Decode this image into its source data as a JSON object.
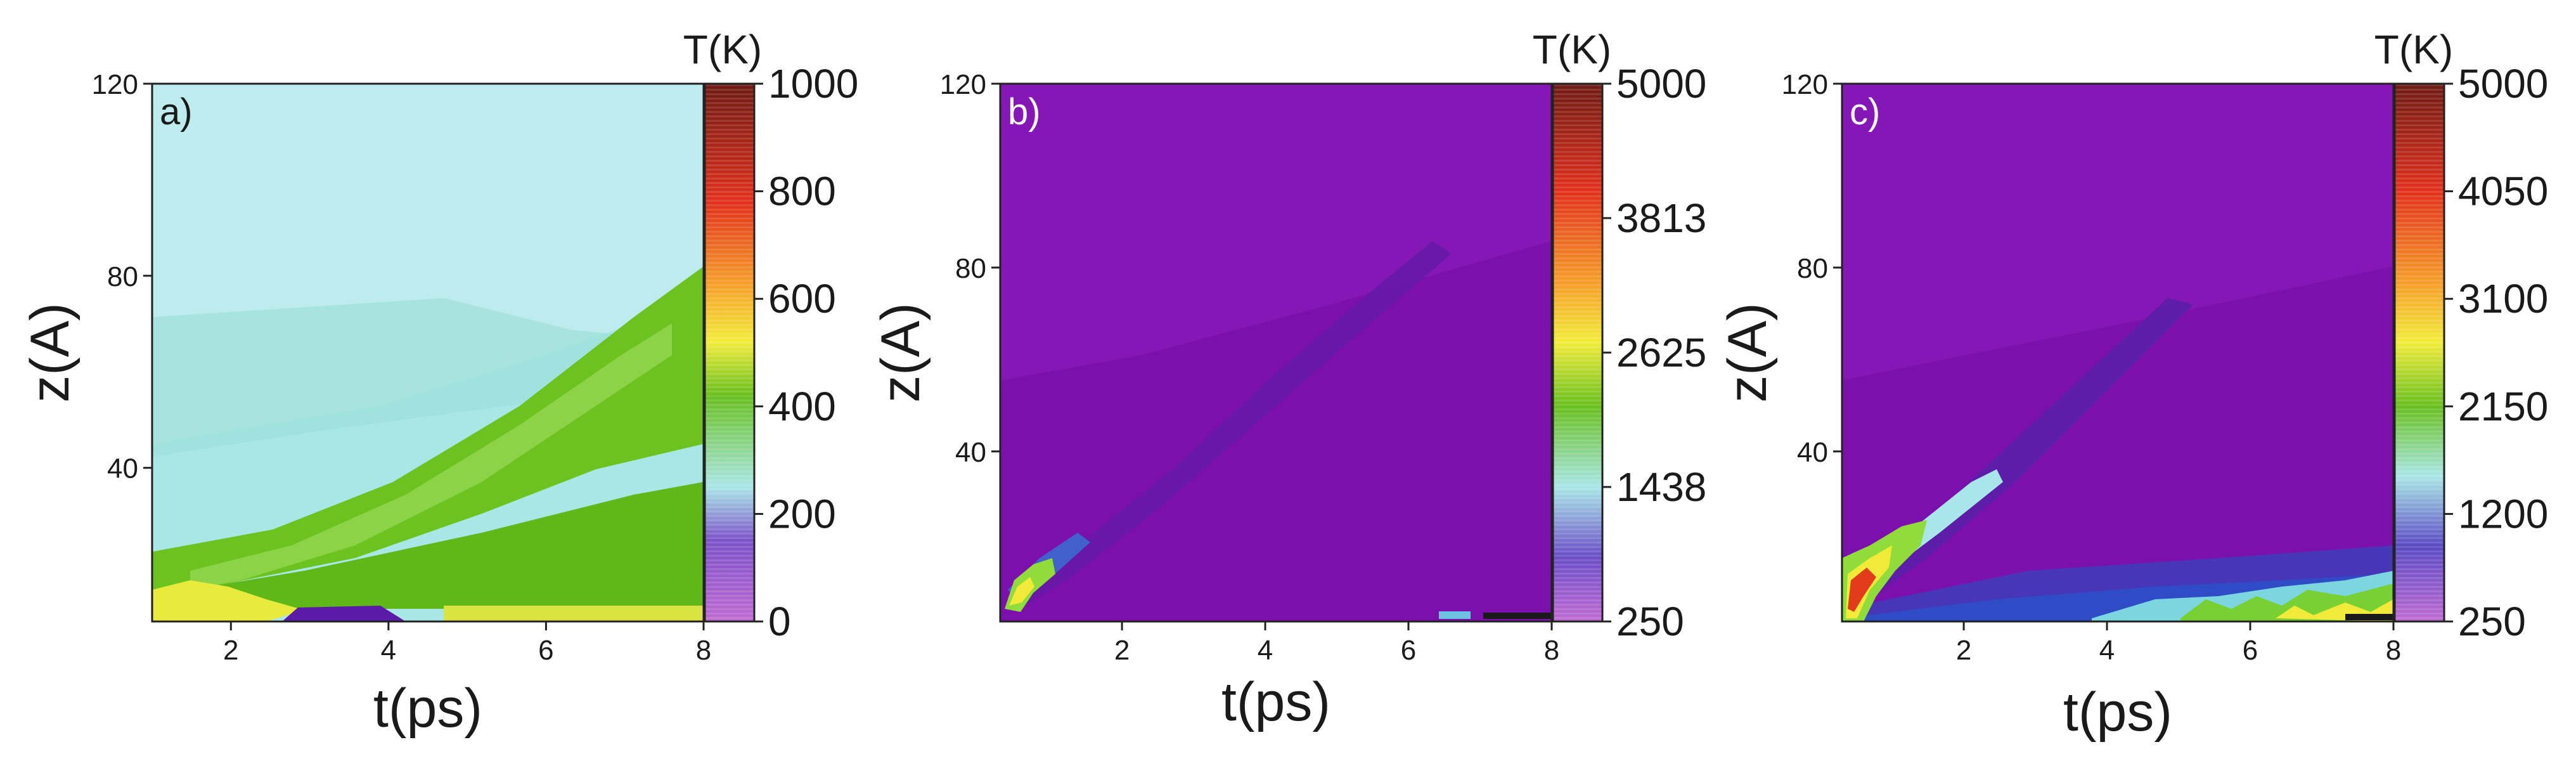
{
  "figure": {
    "colors": {
      "purple": "#7a12ad",
      "violet": "#8f1cbd",
      "blue": "#3e55c6",
      "cyan": "#a9e6e6",
      "light_blue": "#c3ecef",
      "green": "#69bf1c",
      "light_green": "#9bdc55",
      "yellow": "#f2ec3a",
      "orange": "#f07a1c",
      "red": "#e2301c",
      "dark_red": "#6e1b14"
    }
  },
  "chart_data": [
    {
      "type": "heatmap",
      "panel_label": "a)",
      "xlabel": "t(ps)",
      "ylabel": "z(A)",
      "xlim": [
        1,
        8
      ],
      "ylim": [
        8,
        120
      ],
      "xticks": [
        2,
        4,
        6,
        8
      ],
      "yticks": [
        40,
        80,
        120
      ],
      "xtick_labels": [
        "2",
        "4",
        "6",
        "8"
      ],
      "ytick_labels": [
        "40",
        "80",
        "120"
      ],
      "colorbar": {
        "title": "T(K)",
        "range": [
          0,
          1000
        ],
        "ticks": [
          0,
          200,
          400,
          600,
          800,
          1000
        ],
        "tick_labels": [
          "0",
          "200",
          "400",
          "600",
          "800",
          "1000"
        ]
      },
      "background_temperature": 250,
      "features": [
        {
          "kind": "band",
          "t": [
            1,
            8
          ],
          "z_low_start": 14,
          "z_high_start": 25,
          "z_low_end": 42,
          "z_high_end": 82,
          "temperature": 380
        },
        {
          "kind": "band",
          "t": [
            1,
            8
          ],
          "z_low_start": 8,
          "z_high_start": 14,
          "z_low_end": 8,
          "z_high_end": 12,
          "temperature": 430
        },
        {
          "kind": "spot",
          "t": [
            3,
            4.3
          ],
          "z": [
            8,
            10
          ],
          "temperature": 20
        }
      ]
    },
    {
      "type": "heatmap",
      "panel_label": "b)",
      "xlabel": "t(ps)",
      "ylabel": "z(A)",
      "xlim": [
        0.3,
        8
      ],
      "ylim": [
        3,
        120
      ],
      "xticks": [
        2,
        4,
        6,
        8
      ],
      "yticks": [
        40,
        80,
        120
      ],
      "xtick_labels": [
        "2",
        "4",
        "6",
        "8"
      ],
      "ytick_labels": [
        "40",
        "80",
        "120"
      ],
      "colorbar": {
        "title": "T(K)",
        "range": [
          250,
          5000
        ],
        "ticks": [
          250,
          1438,
          2625,
          3813,
          5000
        ],
        "tick_labels": [
          "250",
          "1438",
          "2625",
          "3813",
          "5000"
        ]
      },
      "background_temperature": 300,
      "features": [
        {
          "kind": "band",
          "t": [
            0.3,
            4.8
          ],
          "z_low_start": 5,
          "z_high_start": 14,
          "z_low_end": 50,
          "z_high_end": 70,
          "temperature": 500
        },
        {
          "kind": "spot",
          "t": [
            0.3,
            1.6
          ],
          "z": [
            5,
            22
          ],
          "temperature": 1500
        }
      ]
    },
    {
      "type": "heatmap",
      "panel_label": "c)",
      "xlabel": "t(ps)",
      "ylabel": "z(A)",
      "xlim": [
        0.3,
        8
      ],
      "ylim": [
        3,
        120
      ],
      "xticks": [
        2,
        4,
        6,
        8
      ],
      "yticks": [
        40,
        80,
        120
      ],
      "xtick_labels": [
        "2",
        "4",
        "6",
        "8"
      ],
      "ytick_labels": [
        "40",
        "80",
        "120"
      ],
      "colorbar": {
        "title": "T(K)",
        "range": [
          250,
          5000
        ],
        "ticks": [
          250,
          1200,
          2150,
          3100,
          4050,
          5000
        ],
        "tick_labels": [
          "250",
          "1200",
          "2150",
          "3100",
          "4050",
          "5000"
        ]
      },
      "background_temperature": 350,
      "features": [
        {
          "kind": "band",
          "t": [
            0.3,
            8
          ],
          "z_low_start": 3,
          "z_high_start": 12,
          "z_low_end": 3,
          "z_high_end": 18,
          "temperature": 800
        },
        {
          "kind": "band",
          "t": [
            0.3,
            3.5
          ],
          "z_low_start": 5,
          "z_high_start": 22,
          "z_low_end": 25,
          "z_high_end": 55,
          "temperature": 1000
        },
        {
          "kind": "spot",
          "t": [
            0.3,
            2
          ],
          "z": [
            3,
            35
          ],
          "temperature": 3500
        },
        {
          "kind": "spot",
          "t": [
            3,
            8
          ],
          "z": [
            3,
            12
          ],
          "temperature": 1800
        }
      ]
    }
  ]
}
